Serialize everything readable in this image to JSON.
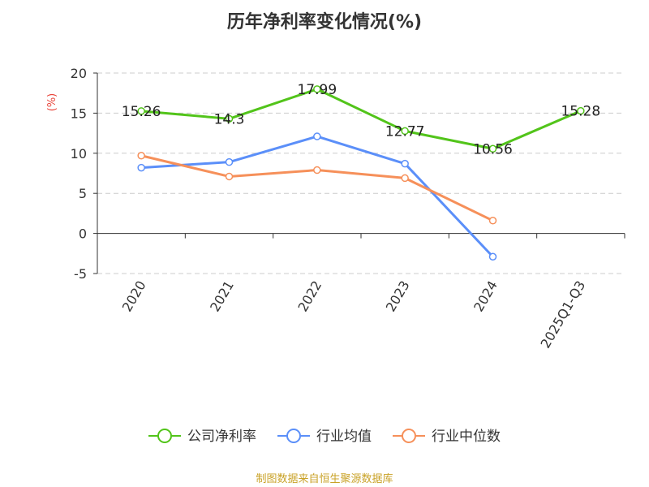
{
  "chart_data": {
    "type": "line",
    "title": "历年净利率变化情况(%)",
    "xlabel": "",
    "ylabel": "(%)",
    "categories": [
      "2020",
      "2021",
      "2022",
      "2023",
      "2024",
      "2025Q1-Q3"
    ],
    "ylim": [
      -5,
      20
    ],
    "yticks": [
      -5,
      0,
      5,
      10,
      15,
      20
    ],
    "grid": true,
    "legend_position": "bottom",
    "series": [
      {
        "name": "公司净利率",
        "color": "#52c41a",
        "values": [
          15.26,
          14.3,
          17.99,
          12.77,
          10.56,
          15.28
        ],
        "labels": [
          "15.26",
          "14.3",
          "17.99",
          "12.77",
          "10.56",
          "15.28"
        ]
      },
      {
        "name": "行业均值",
        "color": "#5b8ff9",
        "values": [
          8.2,
          8.9,
          12.1,
          8.7,
          -2.9,
          null
        ]
      },
      {
        "name": "行业中位数",
        "color": "#f6905a",
        "values": [
          9.7,
          7.1,
          7.9,
          6.9,
          1.6,
          null
        ]
      }
    ]
  },
  "source": "制图数据来自恒生聚源数据库",
  "colors": {
    "ylabel": "#e8443a",
    "source": "#c9a227",
    "axis": "#333333",
    "grid": "#cccccc"
  }
}
